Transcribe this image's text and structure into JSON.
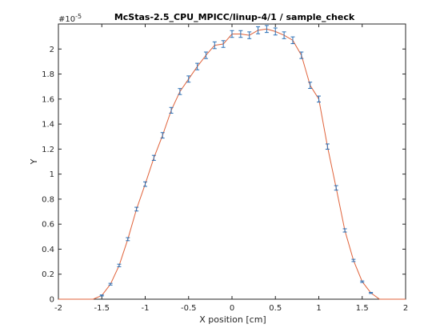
{
  "chart_data": {
    "type": "line",
    "title": "McStas-2.5_CPU_MPICC/linup-4/1 / sample_check",
    "xlabel": "X position [cm]",
    "ylabel": "Y",
    "exponent_label": "#10",
    "exponent_power": "-5",
    "xlim": [
      -2,
      2
    ],
    "ylim": [
      0,
      2.2
    ],
    "grid": false,
    "line_color": "#e0623a",
    "errorbar_color": "#2a6fb5",
    "x_ticks": [
      -2,
      -1.5,
      -1,
      -0.5,
      0,
      0.5,
      1,
      1.5,
      2
    ],
    "x_tick_labels": [
      "-2",
      "-1.5",
      "-1",
      "-0.5",
      "0",
      "0.5",
      "1",
      "1.5",
      "2"
    ],
    "y_ticks": [
      0,
      0.2,
      0.4,
      0.6,
      0.8,
      1,
      1.2,
      1.4,
      1.6,
      1.8,
      2
    ],
    "y_tick_labels": [
      "0",
      "0.2",
      "0.4",
      "0.6",
      "0.8",
      "1",
      "1.2",
      "1.4",
      "1.6",
      "1.8",
      "2"
    ],
    "series": [
      {
        "x": [
          -2.0,
          -1.9,
          -1.8,
          -1.7,
          -1.6,
          -1.5,
          -1.4,
          -1.3,
          -1.2,
          -1.1,
          -1.0,
          -0.9,
          -0.8,
          -0.7,
          -0.6,
          -0.5,
          -0.4,
          -0.3,
          -0.2,
          -0.1,
          0.0,
          0.1,
          0.2,
          0.3,
          0.4,
          0.5,
          0.6,
          0.7,
          0.8,
          0.9,
          1.0,
          1.1,
          1.2,
          1.3,
          1.4,
          1.5,
          1.6,
          1.7,
          1.8,
          1.9,
          2.0
        ],
        "y": [
          0,
          0,
          0,
          0,
          0,
          0.03,
          0.12,
          0.27,
          0.48,
          0.72,
          0.92,
          1.13,
          1.31,
          1.51,
          1.66,
          1.76,
          1.86,
          1.95,
          2.03,
          2.04,
          2.12,
          2.12,
          2.11,
          2.15,
          2.16,
          2.14,
          2.11,
          2.07,
          1.95,
          1.71,
          1.6,
          1.22,
          0.89,
          0.55,
          0.31,
          0.14,
          0.05,
          0,
          0,
          0,
          0
        ],
        "err": [
          0,
          0,
          0,
          0,
          0,
          0.004,
          0.007,
          0.01,
          0.012,
          0.015,
          0.018,
          0.02,
          0.022,
          0.023,
          0.024,
          0.025,
          0.026,
          0.026,
          0.027,
          0.027,
          0.027,
          0.027,
          0.027,
          0.028,
          0.028,
          0.028,
          0.027,
          0.027,
          0.026,
          0.025,
          0.024,
          0.021,
          0.018,
          0.013,
          0.009,
          0.006,
          0.004,
          0,
          0,
          0,
          0
        ]
      }
    ]
  }
}
